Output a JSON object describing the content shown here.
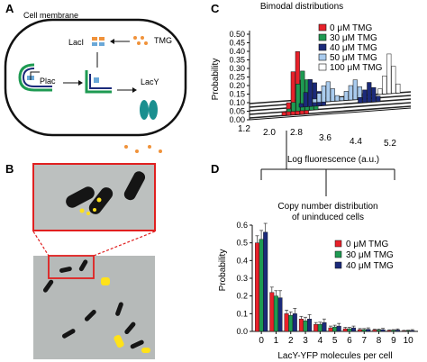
{
  "panel_a": {
    "letter": "A",
    "membrane_label": "Cell membrane",
    "laci_label": "LacI",
    "tmg_label": "TMG",
    "plac_label": "Plac",
    "lacy_label": "LacY"
  },
  "panel_b": {
    "letter": "B"
  },
  "panel_c": {
    "letter": "C",
    "title": "Bimodal distributions",
    "ylabel": "Probability",
    "xlabel": "Log fluorescence (a.u.)",
    "yticks": [
      "0.50",
      "0.45",
      "0.40",
      "0.35",
      "0.30",
      "0.25",
      "0.20",
      "0.15",
      "0.10",
      "0.05",
      "0.00"
    ],
    "xticks": [
      "1.2",
      "2.0",
      "2.8",
      "3.6",
      "4.4",
      "5.2"
    ],
    "legend": [
      {
        "label": "0 μM TMG",
        "color": "#e8212a"
      },
      {
        "label": "30 μM TMG",
        "color": "#1e9a52"
      },
      {
        "label": "40 μM TMG",
        "color": "#1b2a7a"
      },
      {
        "label": "50 μM TMG",
        "color": "#a9cbee"
      },
      {
        "label": "100 μM TMG",
        "color": "#ffffff"
      }
    ]
  },
  "panel_d": {
    "letter": "D",
    "bracket_label_line1": "Copy number distribution",
    "bracket_label_line2": "of uninduced cells"
  },
  "chart_data": {
    "type": "bar",
    "categories": [
      "0",
      "1",
      "2",
      "3",
      "4",
      "5",
      "6",
      "7",
      "8",
      "9",
      "10"
    ],
    "series": [
      {
        "name": "0 μM TMG",
        "color": "#e8212a",
        "values": [
          0.5,
          0.22,
          0.1,
          0.07,
          0.04,
          0.02,
          0.015,
          0.01,
          0.008,
          0.005,
          0.003
        ],
        "errors": [
          0.04,
          0.03,
          0.02,
          0.015,
          0.01,
          0.01,
          0.008,
          0.006,
          0.005,
          0.004,
          0.003
        ]
      },
      {
        "name": "30 μM TMG",
        "color": "#1e9a52",
        "values": [
          0.52,
          0.2,
          0.09,
          0.06,
          0.04,
          0.025,
          0.015,
          0.01,
          0.008,
          0.006,
          0.004
        ],
        "errors": [
          0.05,
          0.03,
          0.02,
          0.02,
          0.012,
          0.01,
          0.008,
          0.006,
          0.005,
          0.004,
          0.003
        ]
      },
      {
        "name": "40 μM TMG",
        "color": "#1b2a7a",
        "values": [
          0.56,
          0.19,
          0.1,
          0.07,
          0.05,
          0.03,
          0.02,
          0.012,
          0.01,
          0.008,
          0.005
        ],
        "errors": [
          0.05,
          0.04,
          0.03,
          0.025,
          0.02,
          0.015,
          0.01,
          0.008,
          0.007,
          0.006,
          0.005
        ]
      }
    ],
    "xlabel": "LacY-YFP molecules per cell",
    "ylabel": "Probability",
    "yticks": [
      "0.0",
      "0.1",
      "0.2",
      "0.3",
      "0.4",
      "0.5",
      "0.6"
    ],
    "ylim": [
      0,
      0.6
    ],
    "legend": "top-right"
  }
}
